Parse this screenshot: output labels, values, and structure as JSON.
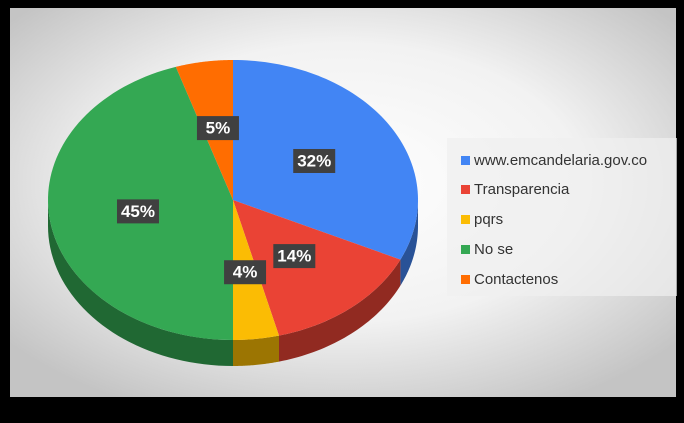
{
  "chart_data": {
    "type": "pie3d",
    "categories": [
      "www.emcandelaria.gov.co",
      "Transparencia",
      "pqrs",
      "No se",
      "Contactenos"
    ],
    "values": [
      32,
      14,
      4,
      45,
      5
    ],
    "value_labels": [
      "32%",
      "14%",
      "4%",
      "45%",
      "5%"
    ],
    "colors": [
      "#4285f4",
      "#ea4335",
      "#fbbc04",
      "#34a853",
      "#ff6d01"
    ],
    "legend": "right"
  }
}
